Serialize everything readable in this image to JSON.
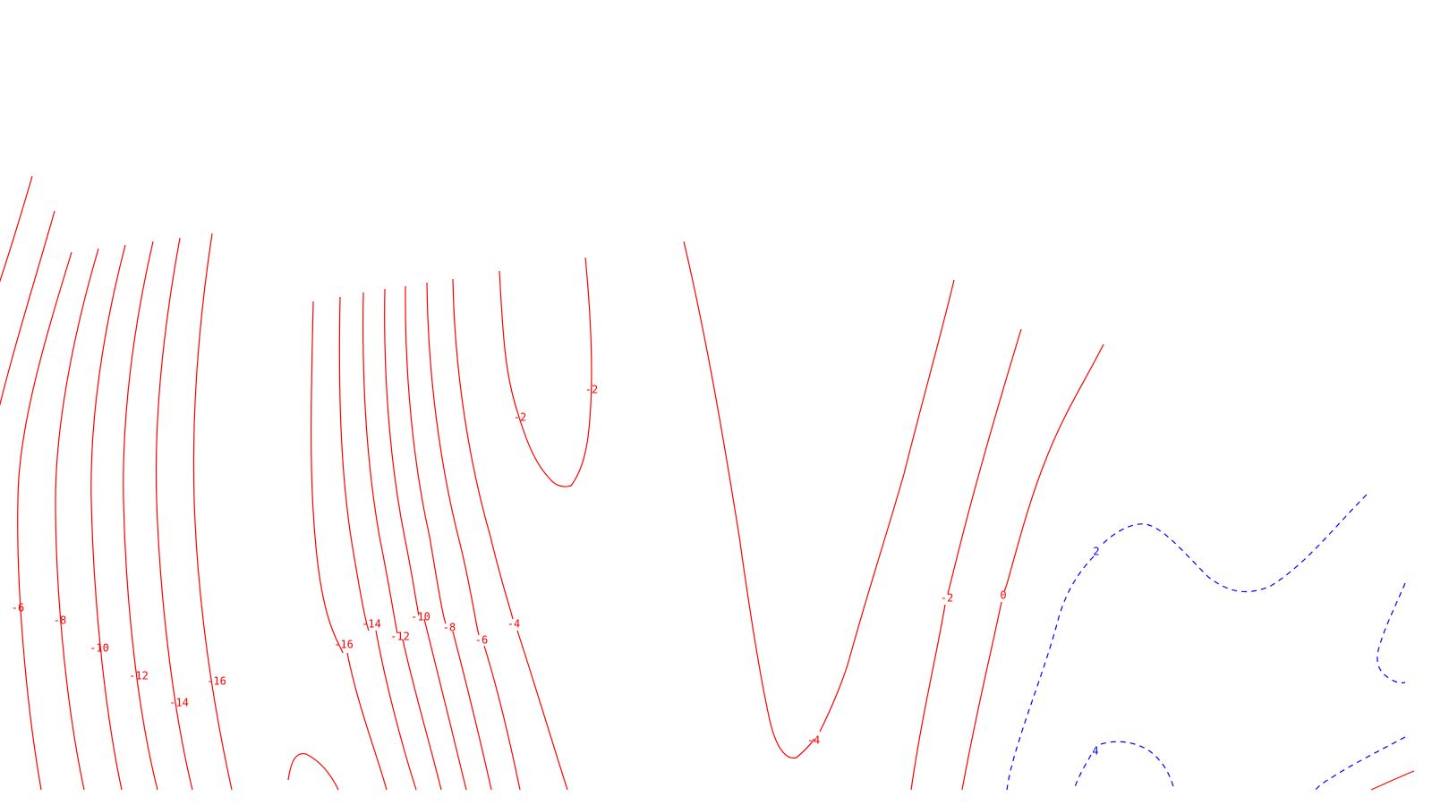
{
  "chart_data": {
    "type": "contour",
    "title": "",
    "xlabel": "",
    "ylabel": "",
    "grid": false,
    "legend": "none",
    "negative_color": "#ff0000",
    "positive_color": "#0000ff",
    "negative_style": "solid",
    "positive_style": "dashed",
    "levels": [
      {
        "value": -16,
        "text": "-16",
        "sign": "neg"
      },
      {
        "value": -14,
        "text": "-14",
        "sign": "neg"
      },
      {
        "value": -12,
        "text": "-12",
        "sign": "neg"
      },
      {
        "value": -10,
        "text": "-10",
        "sign": "neg"
      },
      {
        "value": -8,
        "text": "-8",
        "sign": "neg"
      },
      {
        "value": -6,
        "text": "-6",
        "sign": "neg"
      },
      {
        "value": -4,
        "text": "-4",
        "sign": "neg"
      },
      {
        "value": -2,
        "text": "-2",
        "sign": "neg"
      },
      {
        "value": 0,
        "text": "0",
        "sign": "zero"
      },
      {
        "value": 2,
        "text": "2",
        "sign": "pos"
      },
      {
        "value": 4,
        "text": "4",
        "sign": "pos"
      }
    ]
  }
}
